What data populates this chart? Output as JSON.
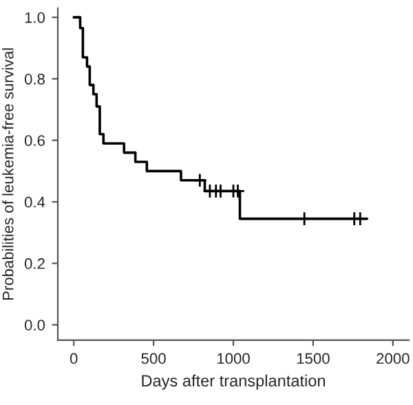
{
  "chart_data": {
    "type": "step",
    "xlabel": "Days after transplantation",
    "ylabel": "Probabilities of leukemia-free survival",
    "series": [
      {
        "color": "#000000",
        "marker": "none",
        "x": [
          0,
          40,
          57,
          83,
          100,
          123,
          143,
          163,
          186,
          315,
          386,
          458,
          672,
          821,
          1041,
          1838
        ],
        "values": [
          1.0,
          0.965,
          0.87,
          0.84,
          0.78,
          0.75,
          0.71,
          0.62,
          0.59,
          0.56,
          0.53,
          0.5,
          0.47,
          0.435,
          0.345,
          0.345
        ]
      },
      {
        "type": "scatter",
        "color": "#000000",
        "marker": "cross",
        "x": [
          790,
          853,
          891,
          920,
          1000,
          1028,
          1445,
          1758,
          1795
        ],
        "values": [
          0.47,
          0.435,
          0.435,
          0.435,
          0.435,
          0.435,
          0.345,
          0.345,
          0.345
        ]
      }
    ],
    "xlim": [
      -100,
      2100
    ],
    "ylim": [
      -0.05,
      1.03
    ],
    "xticks": [
      0,
      500,
      1000,
      1500,
      2000
    ],
    "yticks": [
      {
        "value": 0,
        "label": "0.0"
      },
      {
        "value": 0.2,
        "label": "0.2"
      },
      {
        "value": 0.4,
        "label": "0.4"
      },
      {
        "value": 0.6,
        "label": "0.6"
      },
      {
        "value": 0.8,
        "label": "0.8"
      },
      {
        "value": 1.0,
        "label": "1.0"
      }
    ],
    "grid": false,
    "legend": false
  }
}
